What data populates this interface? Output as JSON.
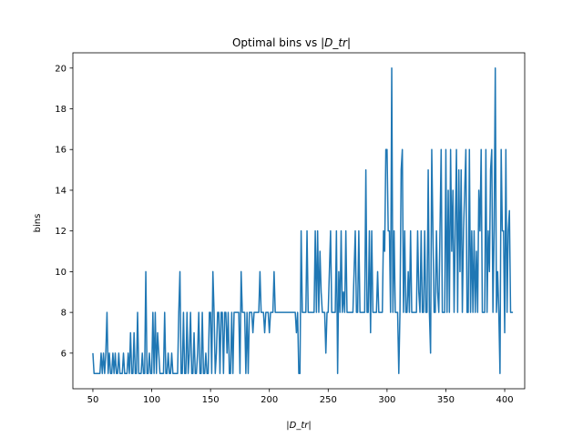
{
  "chart_data": {
    "type": "line",
    "title_prefix": "Optimal bins vs ",
    "title_math": "|D_tr|",
    "xlabel_math": "|D_tr|",
    "ylabel": "bins",
    "xlim": [
      33,
      417
    ],
    "ylim": [
      4.25,
      20.75
    ],
    "xticks": [
      50,
      100,
      150,
      200,
      250,
      300,
      350,
      400
    ],
    "yticks": [
      6,
      8,
      10,
      12,
      14,
      16,
      18,
      20
    ],
    "grid": false,
    "line_color": "#1f77b4",
    "series": [
      {
        "x_start": 50,
        "x_step": 1,
        "values": [
          6,
          5,
          5,
          5,
          5,
          5,
          5,
          6,
          5,
          6,
          5,
          6,
          8,
          5,
          6,
          5,
          5,
          6,
          5,
          6,
          5,
          5,
          6,
          5,
          5,
          5,
          6,
          5,
          5,
          5,
          6,
          5,
          7,
          5,
          5,
          7,
          5,
          5,
          8,
          5,
          5,
          5,
          6,
          5,
          5,
          10,
          5,
          5,
          6,
          5,
          5,
          8,
          5,
          8,
          5,
          7,
          6,
          5,
          5,
          5,
          5,
          8,
          5,
          5,
          6,
          5,
          5,
          6,
          5,
          5,
          5,
          5,
          5,
          8,
          10,
          5,
          5,
          8,
          5,
          5,
          8,
          5,
          6,
          8,
          5,
          5,
          7,
          5,
          5,
          6,
          8,
          5,
          5,
          8,
          5,
          5,
          6,
          5,
          5,
          8,
          8,
          5,
          10,
          8,
          5,
          6,
          8,
          8,
          5,
          8,
          8,
          5,
          8,
          8,
          6,
          8,
          5,
          5,
          8,
          5,
          8,
          8,
          8,
          8,
          8,
          5,
          10,
          8,
          8,
          8,
          5,
          8,
          5,
          8,
          8,
          8,
          7,
          8,
          8,
          8,
          8,
          8,
          10,
          8,
          8,
          8,
          7,
          8,
          8,
          8,
          7,
          8,
          8,
          8,
          10,
          8,
          8,
          8,
          8,
          8,
          8,
          8,
          8,
          8,
          8,
          8,
          8,
          8,
          8,
          8,
          8,
          8,
          8,
          7,
          8,
          5,
          5,
          12,
          8,
          8,
          8,
          8,
          12,
          8,
          8,
          8,
          8,
          8,
          8,
          12,
          8,
          12,
          8,
          11,
          9,
          8,
          8,
          8,
          6,
          8,
          8,
          10,
          12,
          8,
          8,
          8,
          8,
          12,
          5,
          10,
          8,
          12,
          8,
          9,
          8,
          12,
          8,
          8,
          8,
          8,
          8,
          8,
          10,
          12,
          8,
          8,
          12,
          8,
          8,
          8,
          8,
          8,
          15,
          8,
          8,
          12,
          7,
          12,
          8,
          8,
          8,
          8,
          10,
          8,
          8,
          8,
          8,
          12,
          11,
          16,
          16,
          12,
          12,
          8,
          20,
          8,
          12,
          8,
          8,
          8,
          5,
          8,
          15,
          16,
          8,
          12,
          8,
          8,
          10,
          8,
          12,
          8,
          8,
          8,
          8,
          8,
          12,
          9,
          8,
          12,
          8,
          8,
          12,
          8,
          8,
          15,
          8,
          6,
          16,
          12,
          8,
          8,
          12,
          9,
          8,
          12,
          16,
          8,
          8,
          8,
          16,
          8,
          14,
          8,
          16,
          11,
          14,
          8,
          12,
          16,
          8,
          15,
          10,
          15,
          8,
          12,
          14,
          16,
          8,
          8,
          16,
          8,
          12,
          8,
          12,
          8,
          11,
          8,
          14,
          12,
          16,
          8,
          8,
          8,
          16,
          8,
          12,
          10,
          15,
          16,
          8,
          12,
          20,
          8,
          10,
          8,
          5,
          16,
          12,
          12,
          7,
          16,
          8,
          12,
          13,
          8,
          8,
          8
        ]
      }
    ]
  }
}
